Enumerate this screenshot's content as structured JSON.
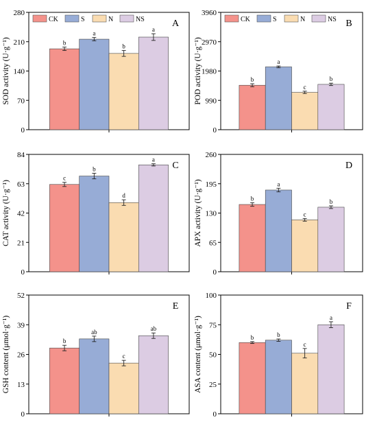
{
  "legend": [
    {
      "key": "CK",
      "label": "CK",
      "color": "#f4928b"
    },
    {
      "key": "S",
      "label": "S",
      "color": "#97acd6"
    },
    {
      "key": "N",
      "label": "N",
      "color": "#fadcb1"
    },
    {
      "key": "NS",
      "label": "NS",
      "color": "#dccce3"
    }
  ],
  "chart_data": [
    {
      "type": "bar",
      "panel": "A",
      "ylabel": "SOD activity (U·g⁻¹)",
      "ylim": [
        0,
        280
      ],
      "yticks": [
        0,
        70,
        140,
        210,
        280
      ],
      "categories": [
        "CK",
        "S",
        "N",
        "NS"
      ],
      "values": [
        193,
        216,
        182,
        221
      ],
      "errors": [
        4,
        4,
        7,
        8
      ],
      "letters": [
        "b",
        "a",
        "b",
        "a"
      ]
    },
    {
      "type": "bar",
      "panel": "B",
      "ylabel": "POD activity (U·g⁻¹)",
      "ylim": [
        0,
        3960
      ],
      "yticks": [
        0,
        990,
        1980,
        2970,
        3960
      ],
      "categories": [
        "CK",
        "S",
        "N",
        "NS"
      ],
      "values": [
        1500,
        2120,
        1260,
        1530
      ],
      "errors": [
        50,
        30,
        40,
        40
      ],
      "letters": [
        "b",
        "a",
        "c",
        "b"
      ]
    },
    {
      "type": "bar",
      "panel": "C",
      "ylabel": "CAT activity (U·g⁻¹)",
      "ylim": [
        0,
        84
      ],
      "yticks": [
        0,
        21,
        42,
        63,
        84
      ],
      "categories": [
        "CK",
        "S",
        "N",
        "NS"
      ],
      "values": [
        62.5,
        68.5,
        49.5,
        76.5
      ],
      "errors": [
        1.5,
        2,
        2,
        0.8
      ],
      "letters": [
        "c",
        "b",
        "d",
        "a"
      ]
    },
    {
      "type": "bar",
      "panel": "D",
      "ylabel": "APX activity (U·g⁻¹)",
      "ylim": [
        0,
        260
      ],
      "yticks": [
        0,
        65,
        130,
        195,
        260
      ],
      "categories": [
        "CK",
        "S",
        "N",
        "NS"
      ],
      "values": [
        149,
        181,
        115,
        143
      ],
      "errors": [
        4,
        4,
        3,
        3
      ],
      "letters": [
        "b",
        "a",
        "c",
        "b"
      ]
    },
    {
      "type": "bar",
      "panel": "E",
      "ylabel": "GSH content (μmol·g⁻¹)",
      "ylim": [
        0,
        52
      ],
      "yticks": [
        0,
        13,
        26,
        39,
        52
      ],
      "categories": [
        "CK",
        "S",
        "N",
        "NS"
      ],
      "values": [
        28.8,
        32.8,
        22.2,
        34.2
      ],
      "errors": [
        1.2,
        1.2,
        1.2,
        1.2
      ],
      "letters": [
        "b",
        "ab",
        "c",
        "ab"
      ]
    },
    {
      "type": "bar",
      "panel": "F",
      "ylabel": "ASA content (μmol·g⁻¹)",
      "ylim": [
        0,
        100
      ],
      "yticks": [
        0,
        25,
        50,
        75,
        100
      ],
      "categories": [
        "CK",
        "S",
        "N",
        "NS"
      ],
      "values": [
        60,
        62,
        51,
        75
      ],
      "errors": [
        0.8,
        1,
        4,
        2.5
      ],
      "letters": [
        "b",
        "b",
        "c",
        "a"
      ]
    }
  ]
}
